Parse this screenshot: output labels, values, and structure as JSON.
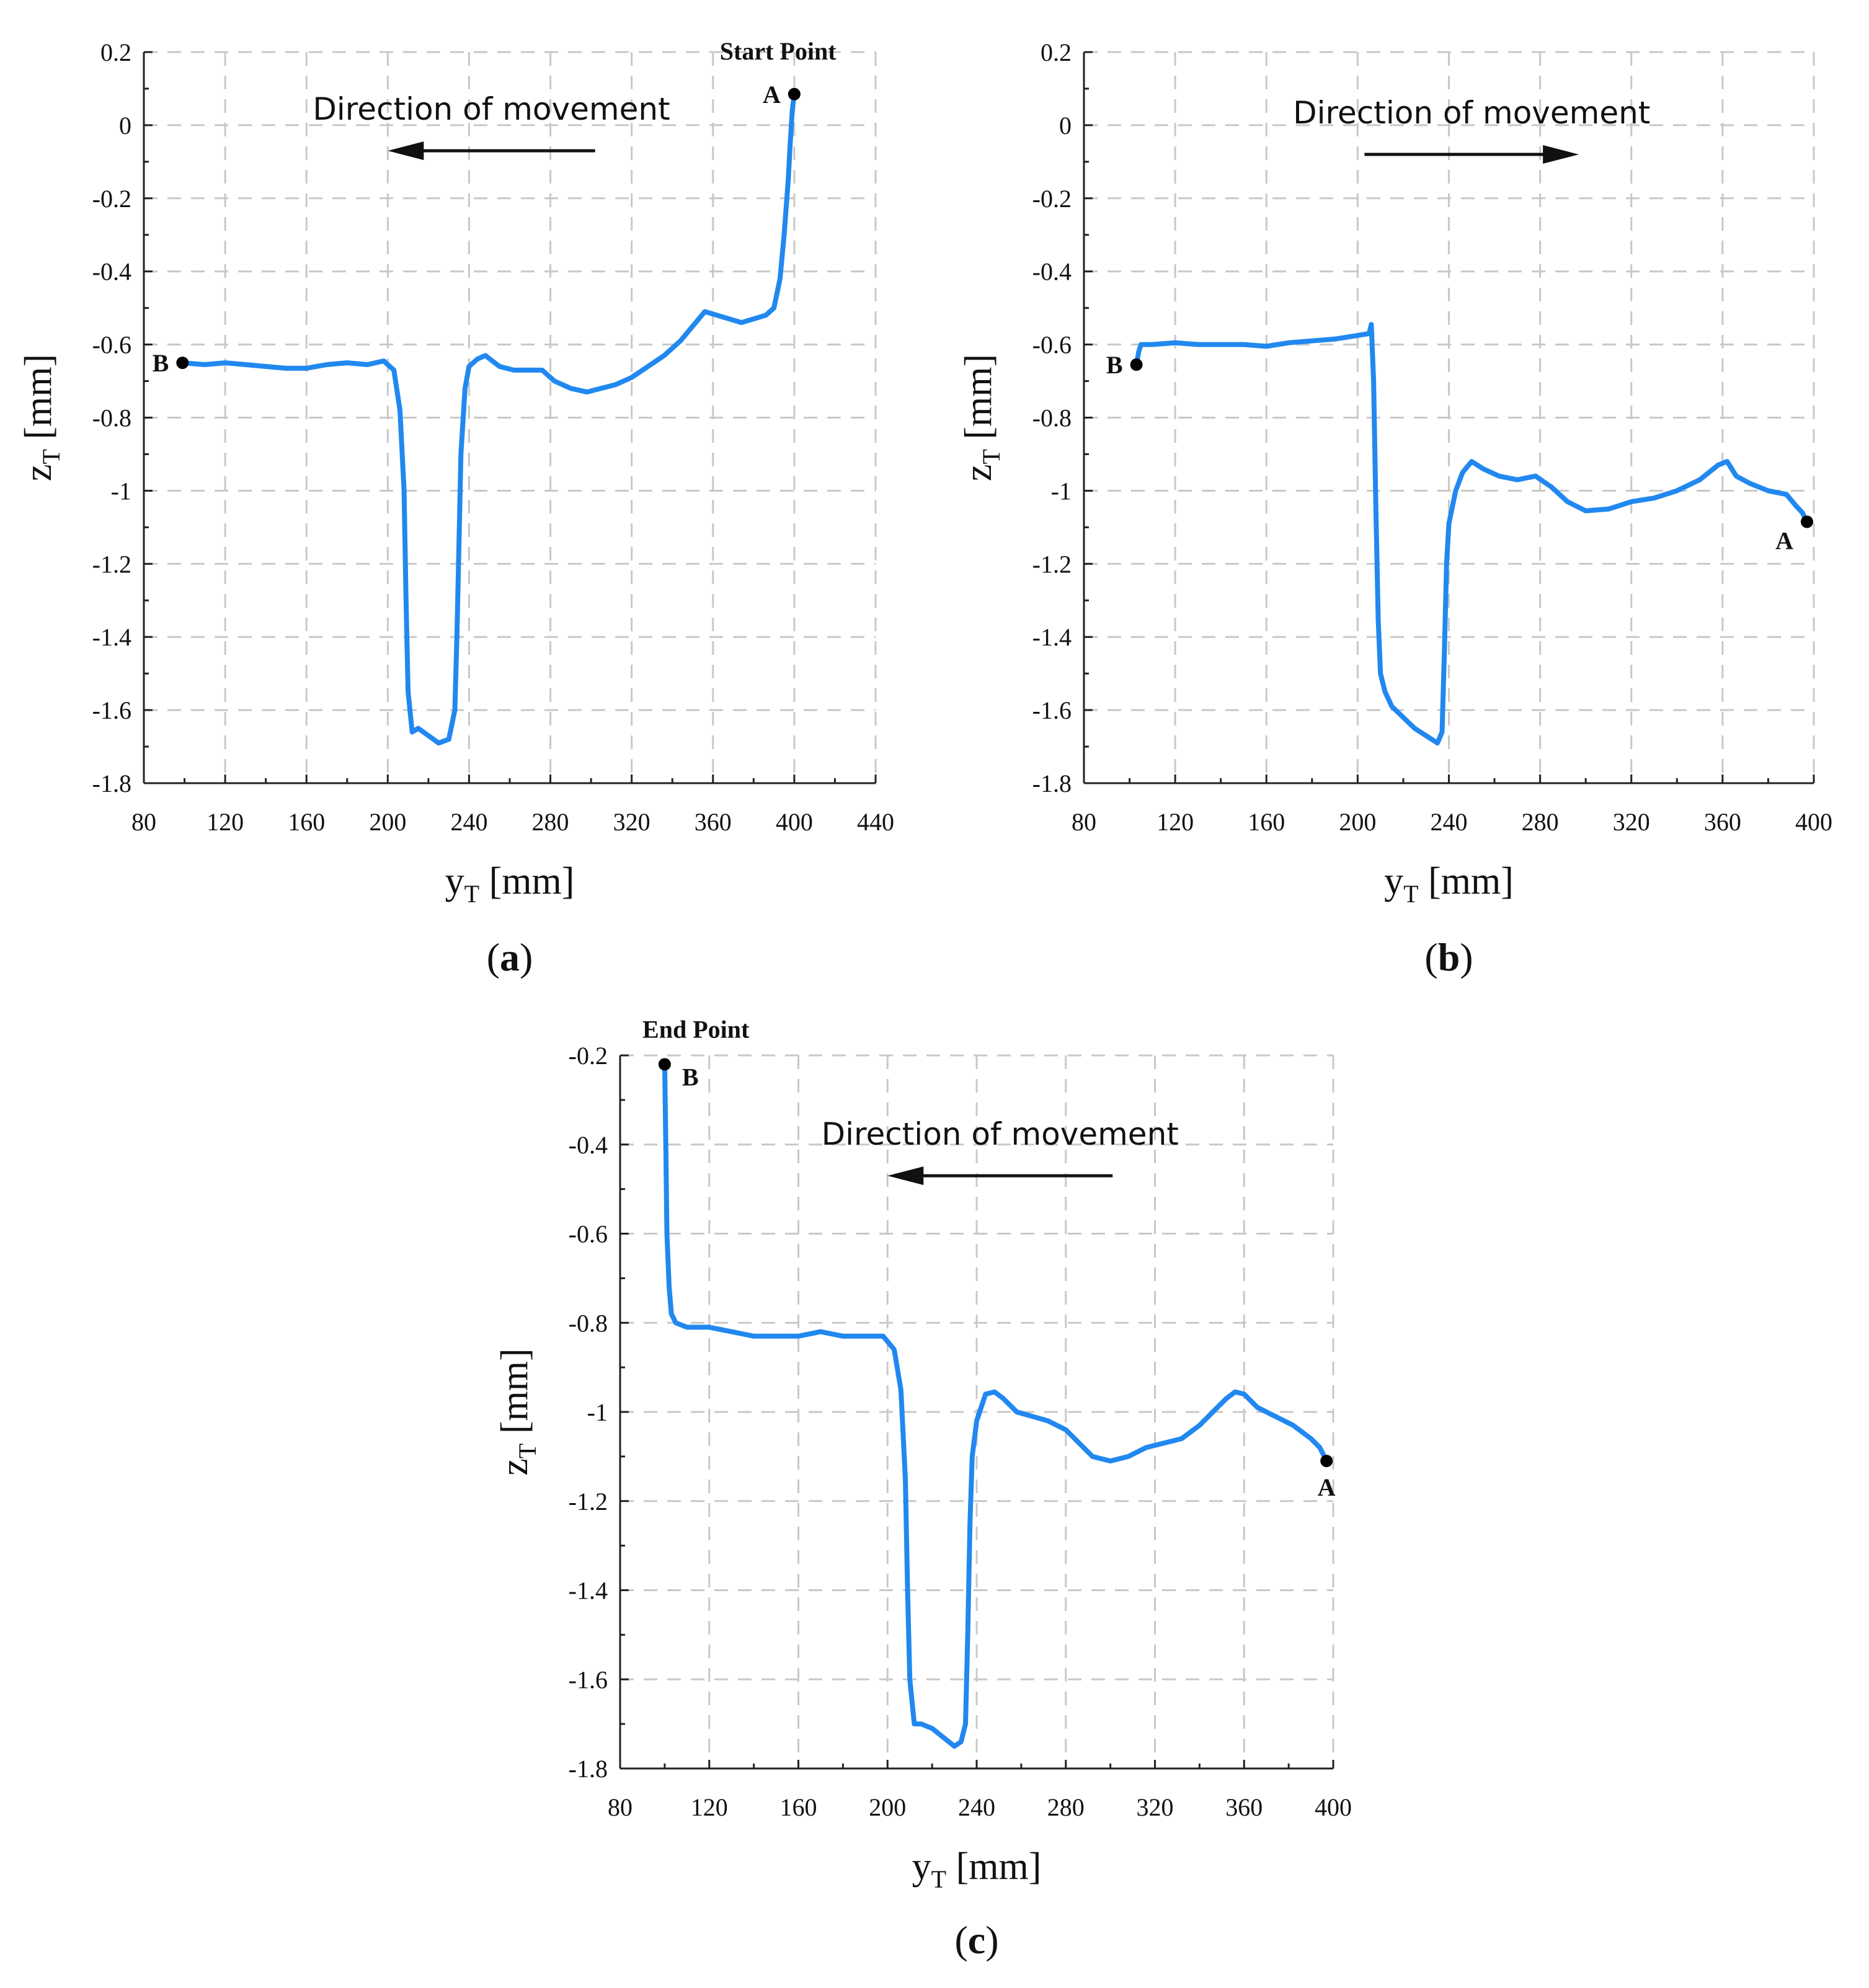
{
  "colors": {
    "series": "#2188f0",
    "marker": "#000000",
    "grid": "#c8c8c8"
  },
  "chart_data": [
    {
      "id": "a",
      "type": "line",
      "panel_label": "a",
      "xlabel": "y",
      "xlabel_sub": "T",
      "xlabel_unit": "[mm]",
      "ylabel": "z",
      "ylabel_sub": "T",
      "ylabel_unit": "[mm]",
      "xlim": [
        80,
        440
      ],
      "ylim": [
        -1.8,
        0.2
      ],
      "xticks": [
        80,
        120,
        160,
        200,
        240,
        280,
        320,
        360,
        400,
        440
      ],
      "xtick_labels": [
        "80",
        "120",
        "160",
        "200",
        "240",
        "280",
        "320",
        "360",
        "400",
        "440"
      ],
      "yticks": [
        0.2,
        0,
        -0.2,
        -0.4,
        -0.6,
        -0.8,
        -1,
        -1.2,
        -1.4,
        -1.6,
        -1.8
      ],
      "ytick_labels": [
        "0.2",
        "0",
        "-0.2",
        "-0.4",
        "-0.6",
        "-0.8",
        "-1",
        "-1.2",
        "-1.4",
        "-1.6",
        "-1.8"
      ],
      "grid": true,
      "direction_text": "Direction of movement",
      "direction_arrow": {
        "from": [
          302,
          -0.07
        ],
        "to": [
          200,
          -0.07
        ]
      },
      "annotation": {
        "text": "Start Point",
        "x": 392,
        "y": 0.18
      },
      "points": [
        {
          "label": "A",
          "x": 400,
          "y": 0.085,
          "label_side": "left"
        },
        {
          "label": "B",
          "x": 99,
          "y": -0.65,
          "label_side": "left"
        }
      ],
      "series": [
        {
          "name": "z_T",
          "x": [
            99,
            110,
            120,
            130,
            140,
            150,
            160,
            170,
            180,
            190,
            198,
            203,
            206,
            208,
            209,
            210,
            212,
            215,
            220,
            225,
            230,
            233,
            234,
            235,
            236,
            238,
            240,
            244,
            248,
            255,
            262,
            270,
            276,
            282,
            290,
            298,
            305,
            312,
            320,
            328,
            336,
            344,
            350,
            356,
            362,
            368,
            374,
            380,
            386,
            390,
            393,
            395,
            397,
            398,
            399,
            400
          ],
          "y": [
            -0.65,
            -0.655,
            -0.65,
            -0.655,
            -0.66,
            -0.665,
            -0.665,
            -0.655,
            -0.65,
            -0.655,
            -0.645,
            -0.67,
            -0.78,
            -1.0,
            -1.3,
            -1.55,
            -1.66,
            -1.65,
            -1.67,
            -1.69,
            -1.68,
            -1.6,
            -1.4,
            -1.15,
            -0.9,
            -0.72,
            -0.66,
            -0.64,
            -0.63,
            -0.66,
            -0.67,
            -0.67,
            -0.67,
            -0.7,
            -0.72,
            -0.73,
            -0.72,
            -0.71,
            -0.69,
            -0.66,
            -0.63,
            -0.59,
            -0.55,
            -0.51,
            -0.52,
            -0.53,
            -0.54,
            -0.53,
            -0.52,
            -0.5,
            -0.42,
            -0.3,
            -0.15,
            -0.05,
            0.04,
            0.085
          ]
        }
      ]
    },
    {
      "id": "b",
      "type": "line",
      "panel_label": "b",
      "xlabel": "y",
      "xlabel_sub": "T",
      "xlabel_unit": "[mm]",
      "ylabel": "z",
      "ylabel_sub": "T",
      "ylabel_unit": "[mm]",
      "xlim": [
        80,
        400
      ],
      "ylim": [
        -1.8,
        0.2
      ],
      "xticks": [
        80,
        120,
        160,
        200,
        240,
        280,
        320,
        360,
        400
      ],
      "xtick_labels": [
        "80",
        "120",
        "160",
        "200",
        "240",
        "280",
        "320",
        "360",
        "400"
      ],
      "yticks": [
        0.2,
        0,
        -0.2,
        -0.4,
        -0.6,
        -0.8,
        -1,
        -1.2,
        -1.4,
        -1.6,
        -1.8
      ],
      "ytick_labels": [
        "0.2",
        "0",
        "-0.2",
        "-0.4",
        "-0.6",
        "-0.8",
        "-1",
        "-1.2",
        "-1.4",
        "-1.6",
        "-1.8"
      ],
      "grid": true,
      "direction_text": "Direction of movement",
      "direction_arrow": {
        "from": [
          203,
          -0.08
        ],
        "to": [
          297,
          -0.08
        ]
      },
      "points": [
        {
          "label": "A",
          "x": 397,
          "y": -1.085,
          "label_side": "below-left"
        },
        {
          "label": "B",
          "x": 103,
          "y": -0.655,
          "label_side": "left"
        }
      ],
      "series": [
        {
          "name": "z_T",
          "x": [
            103,
            104,
            105,
            110,
            120,
            130,
            140,
            150,
            160,
            170,
            180,
            190,
            200,
            205,
            206,
            207,
            208,
            209,
            210,
            212,
            215,
            220,
            225,
            230,
            235,
            237,
            238,
            239,
            240,
            243,
            246,
            250,
            255,
            262,
            270,
            278,
            285,
            292,
            300,
            310,
            320,
            330,
            340,
            350,
            358,
            362,
            366,
            372,
            380,
            388,
            392,
            395,
            397
          ],
          "y": [
            -0.655,
            -0.62,
            -0.6,
            -0.6,
            -0.595,
            -0.6,
            -0.6,
            -0.6,
            -0.605,
            -0.595,
            -0.59,
            -0.585,
            -0.575,
            -0.57,
            -0.545,
            -0.7,
            -1.05,
            -1.35,
            -1.5,
            -1.55,
            -1.59,
            -1.62,
            -1.65,
            -1.67,
            -1.69,
            -1.66,
            -1.45,
            -1.2,
            -1.09,
            -1.0,
            -0.95,
            -0.92,
            -0.94,
            -0.96,
            -0.97,
            -0.96,
            -0.99,
            -1.03,
            -1.055,
            -1.05,
            -1.03,
            -1.02,
            -1.0,
            -0.97,
            -0.93,
            -0.92,
            -0.96,
            -0.98,
            -1.0,
            -1.01,
            -1.04,
            -1.06,
            -1.085
          ]
        }
      ]
    },
    {
      "id": "c",
      "type": "line",
      "panel_label": "c",
      "xlabel": "y",
      "xlabel_sub": "T",
      "xlabel_unit": "[mm]",
      "ylabel": "z",
      "ylabel_sub": "T",
      "ylabel_unit": "[mm]",
      "xlim": [
        80,
        400
      ],
      "ylim": [
        -1.8,
        -0.2
      ],
      "xticks": [
        80,
        120,
        160,
        200,
        240,
        280,
        320,
        360,
        400
      ],
      "xtick_labels": [
        "80",
        "120",
        "160",
        "200",
        "240",
        "280",
        "320",
        "360",
        "400"
      ],
      "yticks": [
        -0.2,
        -0.4,
        -0.6,
        -0.8,
        -1,
        -1.2,
        -1.4,
        -1.6,
        -1.8
      ],
      "ytick_labels": [
        "-0.2",
        "-0.4",
        "-0.6",
        "-0.8",
        "-1",
        "-1.2",
        "-1.4",
        "-1.6",
        "-1.8"
      ],
      "grid": true,
      "direction_text": "Direction of movement",
      "direction_arrow": {
        "from": [
          301,
          -0.47
        ],
        "to": [
          200,
          -0.47
        ]
      },
      "annotation": {
        "text": "End Point",
        "x": 114,
        "y": -0.16
      },
      "points": [
        {
          "label": "B",
          "x": 100,
          "y": -0.22,
          "label_side": "below-right"
        },
        {
          "label": "A",
          "x": 397,
          "y": -1.11,
          "label_side": "below"
        }
      ],
      "series": [
        {
          "name": "z_T",
          "x": [
            100,
            100.5,
            101,
            102,
            103,
            105,
            110,
            120,
            130,
            140,
            150,
            160,
            170,
            180,
            190,
            198,
            203,
            206,
            208,
            209,
            210,
            212,
            215,
            220,
            225,
            230,
            233,
            235,
            236,
            237,
            238,
            240,
            244,
            248,
            252,
            258,
            265,
            272,
            280,
            286,
            292,
            300,
            308,
            316,
            324,
            332,
            340,
            346,
            352,
            356,
            360,
            366,
            374,
            382,
            390,
            394,
            397
          ],
          "y": [
            -0.22,
            -0.4,
            -0.6,
            -0.72,
            -0.78,
            -0.8,
            -0.81,
            -0.81,
            -0.82,
            -0.83,
            -0.83,
            -0.83,
            -0.82,
            -0.83,
            -0.83,
            -0.83,
            -0.86,
            -0.95,
            -1.15,
            -1.4,
            -1.6,
            -1.7,
            -1.7,
            -1.71,
            -1.73,
            -1.75,
            -1.74,
            -1.7,
            -1.5,
            -1.25,
            -1.1,
            -1.02,
            -0.96,
            -0.955,
            -0.97,
            -1.0,
            -1.01,
            -1.02,
            -1.04,
            -1.07,
            -1.1,
            -1.11,
            -1.1,
            -1.08,
            -1.07,
            -1.06,
            -1.03,
            -1.0,
            -0.97,
            -0.955,
            -0.96,
            -0.99,
            -1.01,
            -1.03,
            -1.06,
            -1.08,
            -1.11
          ]
        }
      ]
    }
  ]
}
